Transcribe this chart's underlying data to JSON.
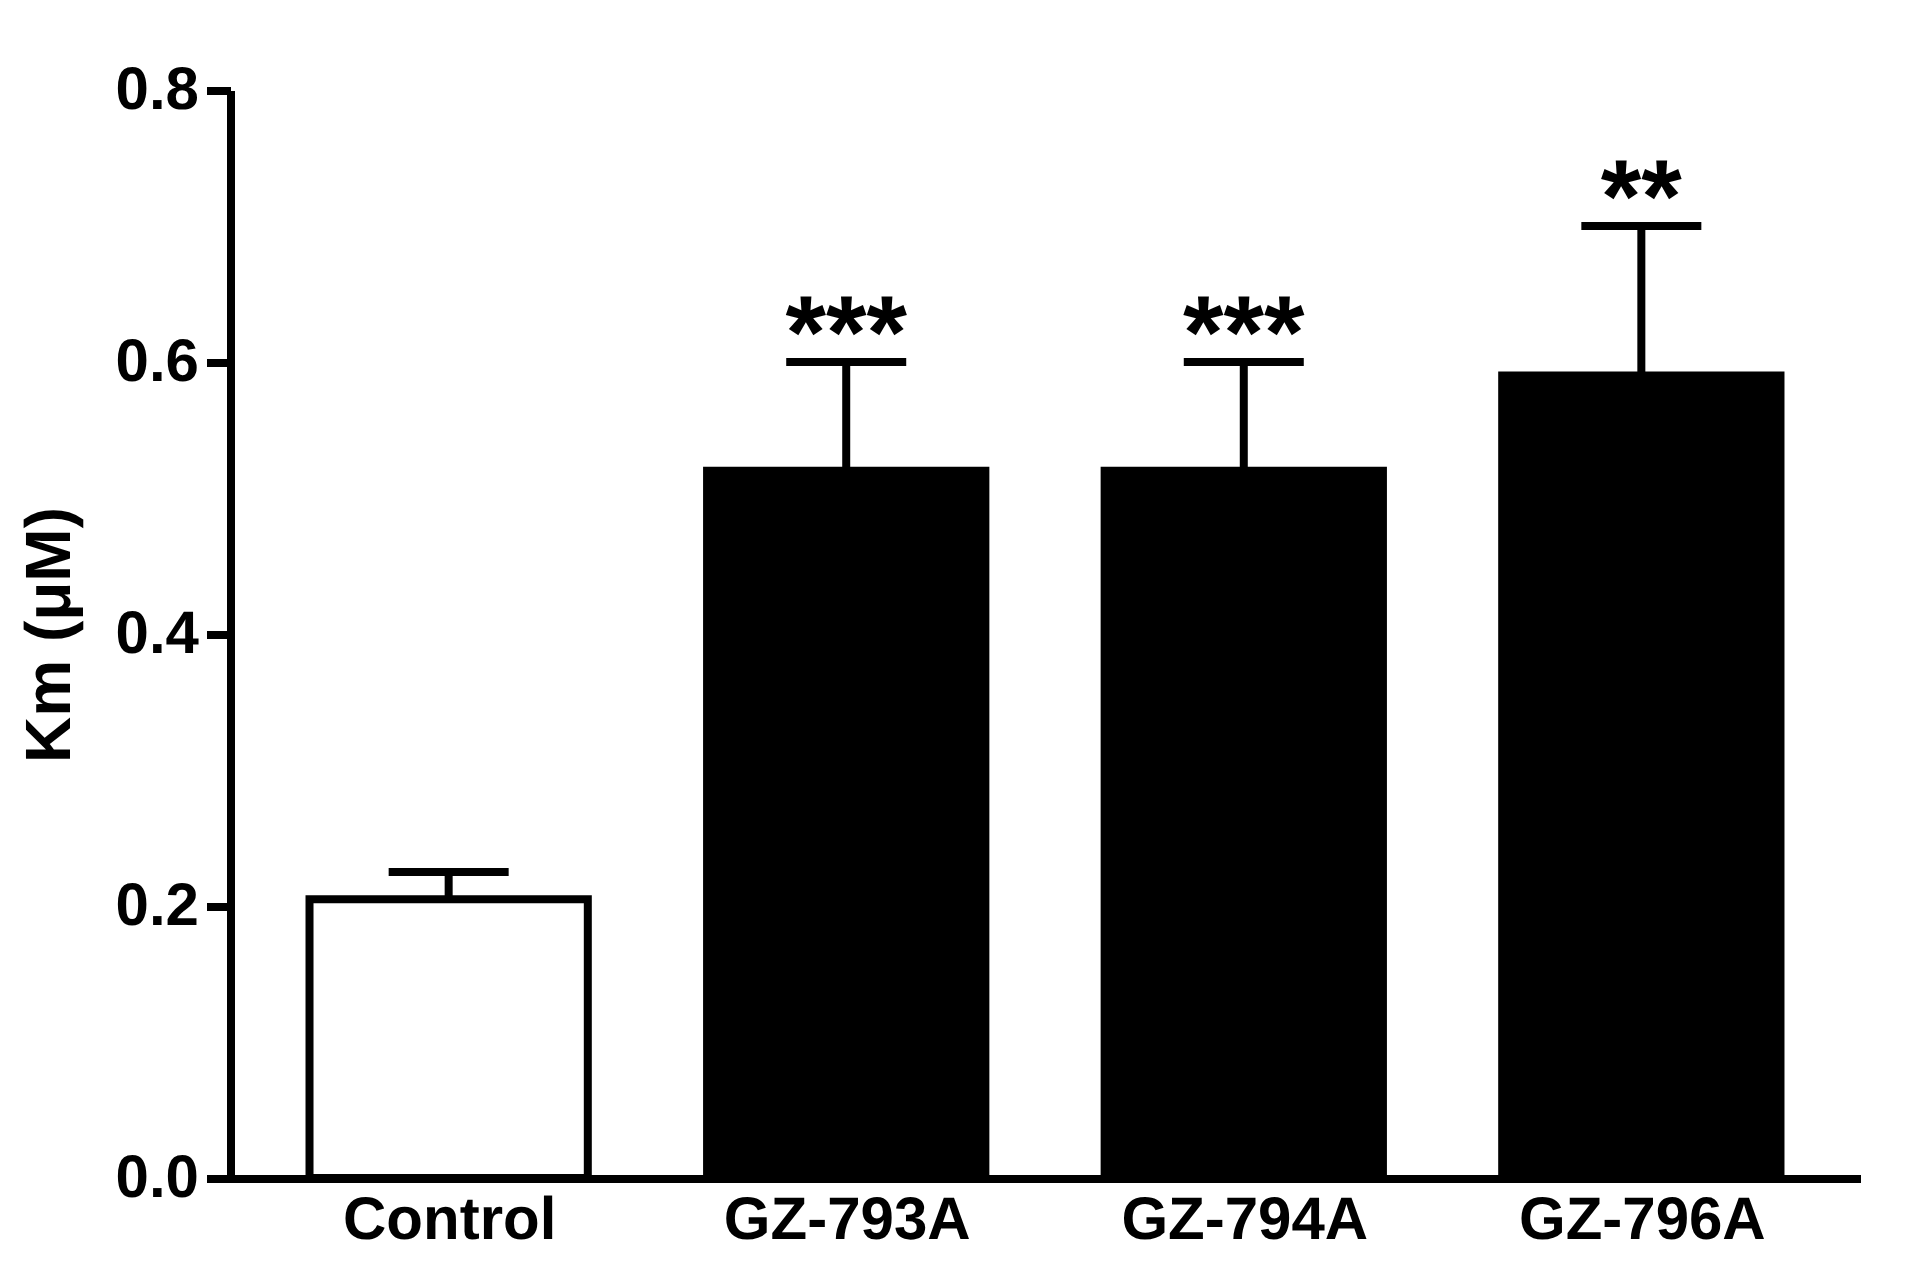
{
  "chart_data": {
    "type": "bar",
    "ylabel": "Km (μM)",
    "categories": [
      "Control",
      "GZ-793A",
      "GZ-794A",
      "GZ-796A"
    ],
    "values": [
      0.205,
      0.52,
      0.52,
      0.59
    ],
    "errors": [
      [
        0.205,
        0.225
      ],
      [
        0.52,
        0.6
      ],
      [
        0.52,
        0.6
      ],
      [
        0.59,
        0.7
      ]
    ],
    "colors": [
      "#ffffff",
      "#000000",
      "#000000",
      "#000000"
    ],
    "ylim": [
      0,
      0.8
    ],
    "yticks": [
      {
        "value": 0,
        "label": "0.0"
      },
      0.2,
      0.4,
      0.6,
      0.8
    ],
    "annotations": [
      {
        "text": "***",
        "x": "GZ-793A",
        "y": 0.6
      },
      {
        "text": "***",
        "x": "GZ-794A",
        "y": 0.6
      },
      {
        "text": "**",
        "x": "GZ-796A",
        "y": 0.7
      }
    ],
    "grid": false
  }
}
